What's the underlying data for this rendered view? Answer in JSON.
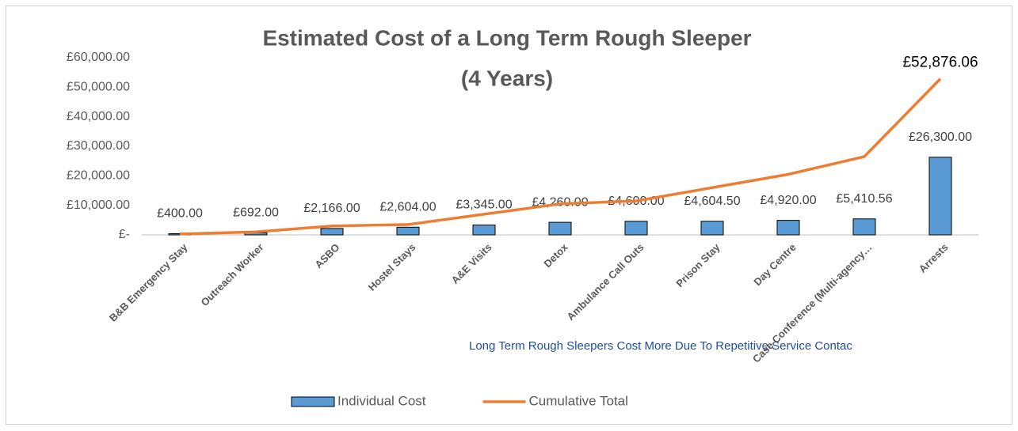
{
  "chart_data": {
    "type": "bar-line",
    "title": [
      "Estimated Cost of a Long Term Rough Sleeper",
      "(4 Years)"
    ],
    "categories": [
      "B&B Emergency Stay",
      "Outreach Worker",
      "ASBO",
      "Hostel Stays",
      "A&E Visits",
      "Detox",
      "Ambulance Call Outs",
      "Prison Stay",
      "Day Centre",
      "Case Conference (Multi-agency…",
      "Arrests"
    ],
    "series": [
      {
        "name": "Individual Cost",
        "type": "bar",
        "color": "#5b9bd5",
        "values": [
          400,
          692,
          2166,
          2604,
          3345,
          4260,
          4600,
          4604.5,
          4920,
          5410.56,
          26300
        ],
        "value_labels": [
          "£400.00",
          "£692.00",
          "£2,166.00",
          "£2,604.00",
          "£3,345.00",
          "£4,260.00",
          "£4,600.00",
          "£4,604.50",
          "£4,920.00",
          "£5,410.56",
          "£26,300.00"
        ]
      },
      {
        "name": "Cumulative Total",
        "type": "line",
        "color": "#ed7d31",
        "values": [
          300,
          1000,
          3000,
          3500,
          7000,
          10500,
          11500,
          16000,
          20500,
          26500,
          52876.06
        ],
        "value_labels": [
          null,
          null,
          null,
          null,
          null,
          null,
          null,
          null,
          null,
          null,
          "£52,876.06"
        ]
      }
    ],
    "ylim": [
      0,
      60000
    ],
    "yticks": [
      {
        "value": 0,
        "label": "£-"
      },
      {
        "value": 10000,
        "label": "£10,000.00"
      },
      {
        "value": 20000,
        "label": "£20,000.00"
      },
      {
        "value": 30000,
        "label": "£30,000.00"
      },
      {
        "value": 40000,
        "label": "£40,000.00"
      },
      {
        "value": 50000,
        "label": "£50,000.00"
      },
      {
        "value": 60000,
        "label": "£60,000.00"
      }
    ],
    "annotation": "Long Term Rough Sleepers Cost More Due To Repetitive Service Contac",
    "legend": "bottom"
  }
}
